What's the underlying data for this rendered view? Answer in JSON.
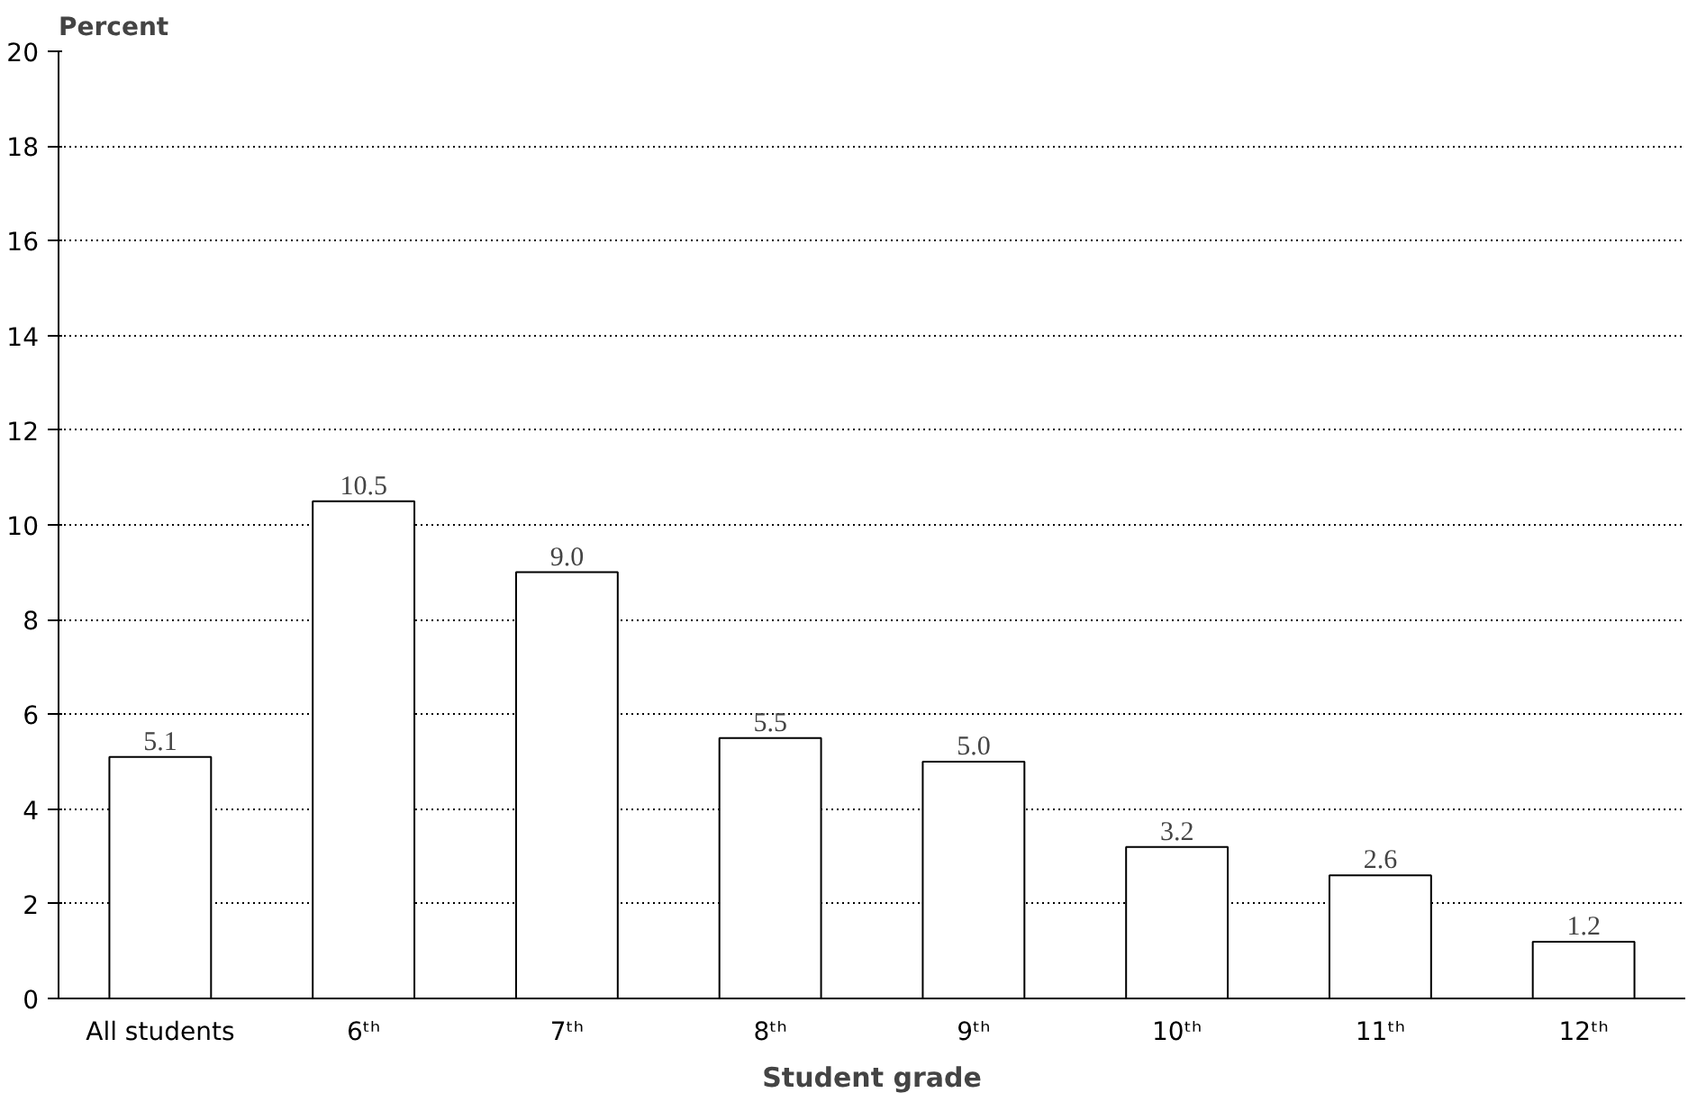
{
  "chart_data": {
    "type": "bar",
    "categories": [
      "All students",
      "6ᵗʰ",
      "7ᵗʰ",
      "8ᵗʰ",
      "9ᵗʰ",
      "10ᵗʰ",
      "11ᵗʰ",
      "12ᵗʰ"
    ],
    "values": [
      5.1,
      10.5,
      9.0,
      5.5,
      5.0,
      3.2,
      2.6,
      1.2
    ],
    "value_labels": [
      "5.1",
      "10.5",
      "9.0",
      "5.5",
      "5.0",
      "3.2",
      "2.6",
      "1.2"
    ],
    "color": "#ffffff",
    "xlabel": "Student grade",
    "ylabel": "Percent",
    "ylim": [
      0,
      20
    ],
    "yticks": [
      0,
      2,
      4,
      6,
      8,
      10,
      12,
      14,
      16,
      18,
      20
    ],
    "grid": "y"
  }
}
